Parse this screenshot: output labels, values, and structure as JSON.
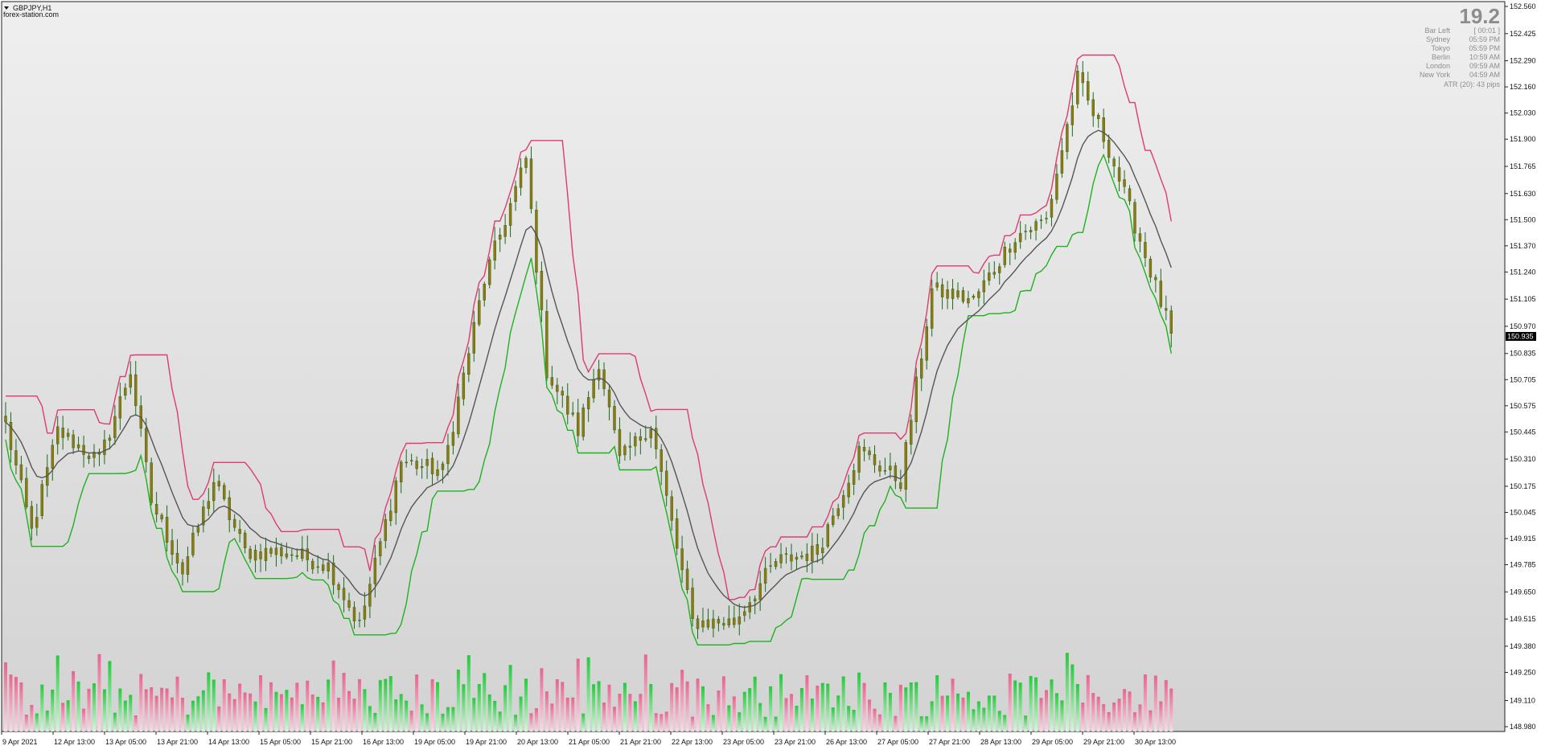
{
  "header": {
    "symbol_label": "GBPJPY,H1",
    "watermark": "forex-station.com"
  },
  "info_panel": {
    "countdown": "19.2",
    "rows": [
      {
        "label": "Bar Left",
        "value": "[ 00:01 ]"
      },
      {
        "label": "Sydney",
        "value": "05:59 PM"
      },
      {
        "label": "Tokyo",
        "value": "05:59 PM"
      },
      {
        "label": "Berlin",
        "value": "10:59 AM"
      },
      {
        "label": "London",
        "value": "09:59 AM"
      },
      {
        "label": "New York",
        "value": "04:59 AM"
      }
    ],
    "atr": "ATR (20): 43 pips"
  },
  "price_axis": {
    "ticks": [
      "152.560",
      "152.425",
      "152.290",
      "152.160",
      "152.030",
      "151.900",
      "151.765",
      "151.630",
      "151.500",
      "151.370",
      "151.240",
      "151.105",
      "150.970",
      "150.835",
      "150.705",
      "150.575",
      "150.445",
      "150.310",
      "150.175",
      "150.045",
      "149.915",
      "149.785",
      "149.650",
      "149.515",
      "149.380",
      "149.250",
      "149.110",
      "148.980"
    ],
    "current_price": "150.935"
  },
  "time_axis": {
    "labels": [
      "9 Apr 2021",
      "12 Apr 13:00",
      "13 Apr 05:00",
      "13 Apr 21:00",
      "14 Apr 13:00",
      "15 Apr 05:00",
      "15 Apr 21:00",
      "16 Apr 13:00",
      "19 Apr 05:00",
      "19 Apr 21:00",
      "20 Apr 13:00",
      "21 Apr 05:00",
      "21 Apr 21:00",
      "22 Apr 13:00",
      "23 Apr 05:00",
      "23 Apr 21:00",
      "26 Apr 13:00",
      "27 Apr 05:00",
      "27 Apr 21:00",
      "28 Apr 13:00",
      "29 Apr 05:00",
      "29 Apr 21:00",
      "30 Apr 13:00"
    ]
  },
  "chart_data": {
    "type": "candlestick",
    "symbol": "GBPJPY",
    "timeframe": "H1",
    "ylim": [
      148.98,
      152.56
    ],
    "bars_visible": 225,
    "close_anchors": [
      {
        "bar": 0,
        "close": 150.48
      },
      {
        "bar": 5,
        "close": 149.95
      },
      {
        "bar": 10,
        "close": 150.45
      },
      {
        "bar": 18,
        "close": 150.3
      },
      {
        "bar": 24,
        "close": 150.75
      },
      {
        "bar": 28,
        "close": 150.1
      },
      {
        "bar": 34,
        "close": 149.75
      },
      {
        "bar": 40,
        "close": 150.2
      },
      {
        "bar": 46,
        "close": 149.85
      },
      {
        "bar": 54,
        "close": 149.85
      },
      {
        "bar": 62,
        "close": 149.78
      },
      {
        "bar": 68,
        "close": 149.48
      },
      {
        "bar": 76,
        "close": 150.3
      },
      {
        "bar": 84,
        "close": 150.25
      },
      {
        "bar": 92,
        "close": 151.2
      },
      {
        "bar": 100,
        "close": 151.8
      },
      {
        "bar": 104,
        "close": 150.75
      },
      {
        "bar": 110,
        "close": 150.45
      },
      {
        "bar": 114,
        "close": 150.8
      },
      {
        "bar": 118,
        "close": 150.3
      },
      {
        "bar": 124,
        "close": 150.48
      },
      {
        "bar": 132,
        "close": 149.5
      },
      {
        "bar": 140,
        "close": 149.5
      },
      {
        "bar": 148,
        "close": 149.8
      },
      {
        "bar": 156,
        "close": 149.85
      },
      {
        "bar": 164,
        "close": 150.35
      },
      {
        "bar": 172,
        "close": 150.2
      },
      {
        "bar": 178,
        "close": 151.15
      },
      {
        "bar": 186,
        "close": 151.1
      },
      {
        "bar": 194,
        "close": 151.42
      },
      {
        "bar": 200,
        "close": 151.5
      },
      {
        "bar": 206,
        "close": 152.2
      },
      {
        "bar": 212,
        "close": 151.85
      },
      {
        "bar": 218,
        "close": 151.4
      },
      {
        "bar": 224,
        "close": 150.93
      }
    ],
    "series": [
      {
        "name": "upper",
        "color": "#dc3c6e"
      },
      {
        "name": "lower",
        "color": "#1fb21f"
      },
      {
        "name": "trail",
        "color": "#555555"
      }
    ],
    "colors": {
      "candle_body": "#8a7a12",
      "candle_wick": "#1a6a1a",
      "volume_up": "#27c93f",
      "volume_down": "#e8658e",
      "background_top": "#efefef",
      "background_bottom": "#d3d3d3"
    }
  }
}
